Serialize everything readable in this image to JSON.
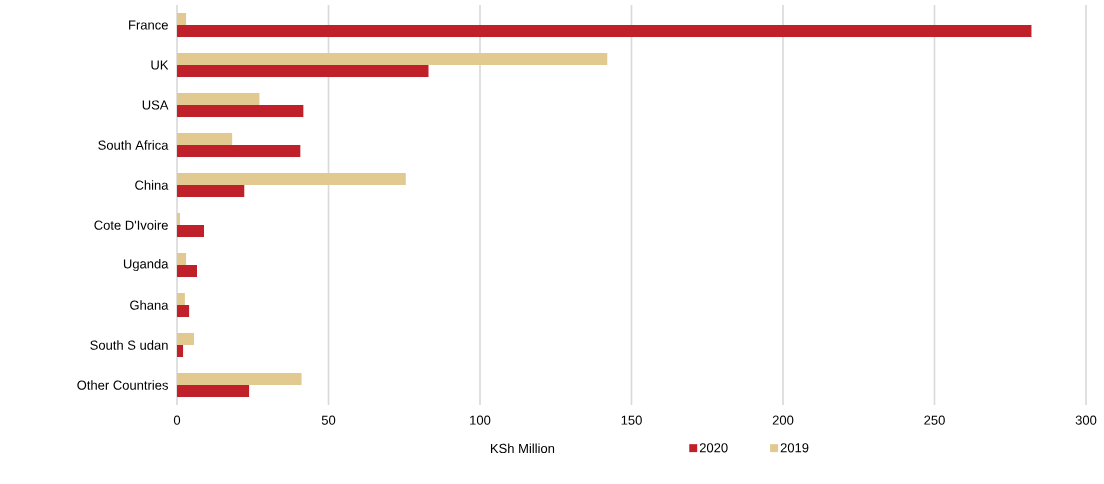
{
  "chart_data": {
    "type": "bar",
    "orientation": "horizontal",
    "xlabel": "KSh Million",
    "categories": [
      "France",
      "UK",
      "USA",
      "South Africa",
      "China",
      "Cote D'Ivoire",
      "Uganda",
      "Ghana",
      "South S udan",
      "Other Countries"
    ],
    "series": [
      {
        "name": "2020",
        "color": "#c0202a",
        "values": [
          282,
          83,
          41.7,
          40.7,
          22.2,
          8.9,
          6.6,
          4.0,
          2.0,
          23.8
        ]
      },
      {
        "name": "2019",
        "color": "#e2c990",
        "values": [
          3.0,
          142,
          27.2,
          18.2,
          75.5,
          1.0,
          3.0,
          2.6,
          5.6,
          41.1
        ]
      }
    ],
    "xlim": [
      0,
      300
    ],
    "xticks": [
      0,
      50,
      100,
      150,
      200,
      250,
      300
    ],
    "grid": "x",
    "legend": "bottom"
  }
}
